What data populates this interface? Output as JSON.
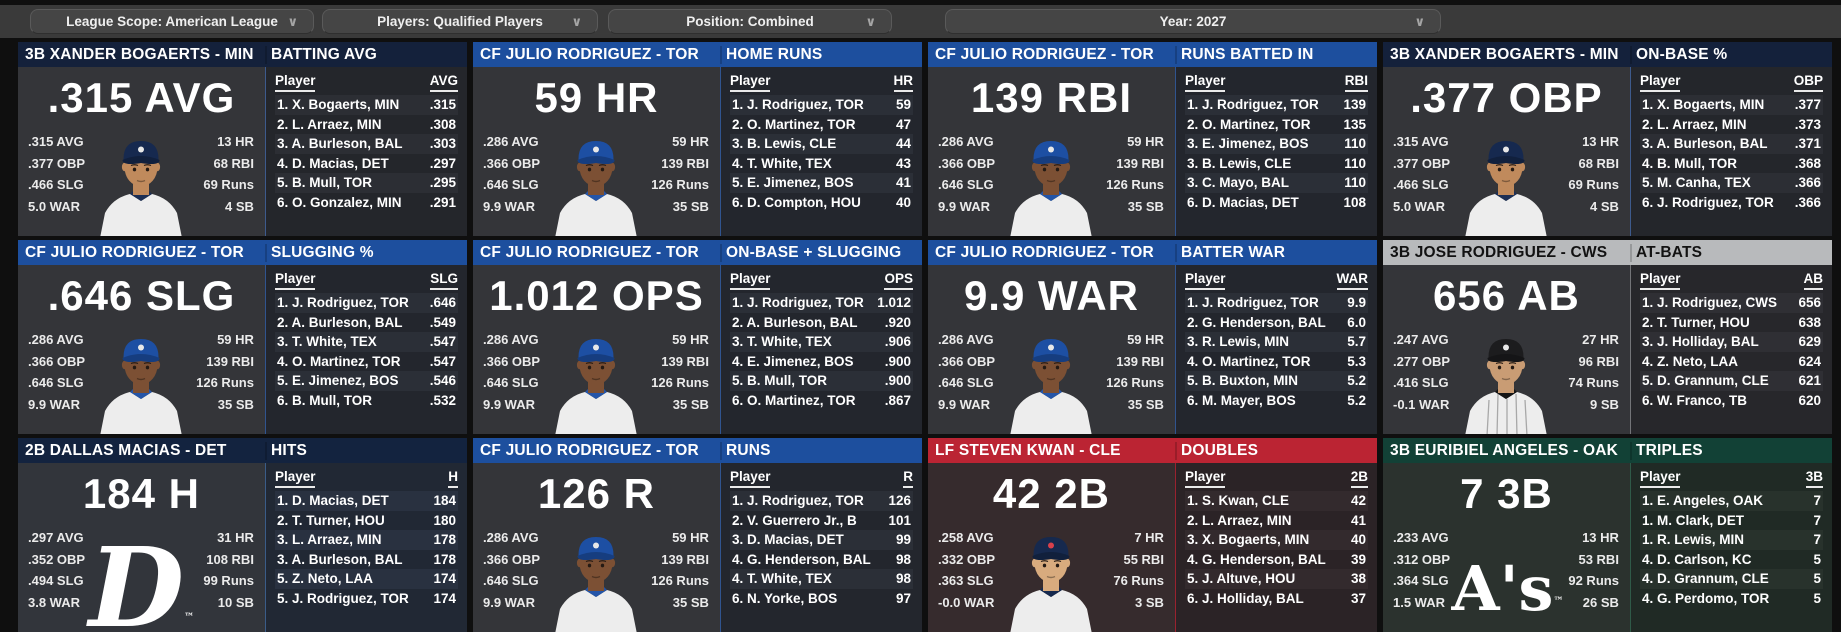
{
  "toolbar": {
    "chevron_icon": "∨",
    "dropdowns": [
      {
        "id": "league-scope",
        "label": "League Scope: American League"
      },
      {
        "id": "players",
        "label": "Players: Qualified Players"
      },
      {
        "id": "position",
        "label": "Position: Combined"
      },
      {
        "id": "year",
        "label": "Year: 2027"
      }
    ]
  },
  "panels": [
    {
      "player_header": "3B XANDER BOGAERTS - MIN",
      "stat_header": "BATTING AVG",
      "big_stat": ".315 AVG",
      "left_stats": [
        ".315 AVG",
        ".377 OBP",
        ".466 SLG",
        "5.0 WAR"
      ],
      "right_stats": [
        "13 HR",
        "68 RBI",
        "69 Runs",
        "4 SB"
      ],
      "table": {
        "player_col": "Player",
        "stat_col": "AVG",
        "rows": [
          {
            "player": "1. X. Bogaerts, MIN",
            "value": ".315"
          },
          {
            "player": "2. L. Arraez, MIN",
            "value": ".308"
          },
          {
            "player": "3. A. Burleson, BAL",
            "value": ".303"
          },
          {
            "player": "4. D. Macias, DET",
            "value": ".297"
          },
          {
            "player": "5. B. Mull, TOR",
            "value": ".295"
          },
          {
            "player": "6. O. Gonzalez, MIN",
            "value": ".291"
          }
        ]
      },
      "colors": {
        "header_bg": "#14213b",
        "header_fg": "#ffffff",
        "body_bg": "#343539",
        "list_bg": "#24262b",
        "row_alt": "#2c2e34",
        "divider": "#3d5a8c"
      },
      "avatar": {
        "kind": "player",
        "cap": "#16294f",
        "skin": "#c08a5c",
        "collar": "#1c2f55",
        "cap_logo": "#e8e8e8",
        "pinstripes": false
      }
    },
    {
      "player_header": "CF JULIO RODRIGUEZ - TOR",
      "stat_header": "HOME RUNS",
      "big_stat": "59 HR",
      "left_stats": [
        ".286 AVG",
        ".366 OBP",
        ".646 SLG",
        "9.9 WAR"
      ],
      "right_stats": [
        "59 HR",
        "139 RBI",
        "126 Runs",
        "35 SB"
      ],
      "table": {
        "player_col": "Player",
        "stat_col": "HR",
        "rows": [
          {
            "player": "1. J. Rodriguez, TOR",
            "value": "59"
          },
          {
            "player": "2. O. Martinez, TOR",
            "value": "47"
          },
          {
            "player": "3. B. Lewis, CLE",
            "value": "44"
          },
          {
            "player": "4. T. White, TEX",
            "value": "43"
          },
          {
            "player": "5. E. Jimenez, BOS",
            "value": "41"
          },
          {
            "player": "6. D. Compton, HOU",
            "value": "40"
          }
        ]
      },
      "colors": {
        "header_bg": "#1d4f9e",
        "header_fg": "#ffffff",
        "body_bg": "#343539",
        "list_bg": "#23262d",
        "row_alt": "#2b2f37",
        "divider": "#30548f"
      },
      "avatar": {
        "kind": "player",
        "cap": "#1d4fa3",
        "skin": "#7c5034",
        "collar": "#2455a8",
        "cap_logo": "#e8e8e8",
        "pinstripes": false
      }
    },
    {
      "player_header": "CF JULIO RODRIGUEZ - TOR",
      "stat_header": "RUNS BATTED IN",
      "big_stat": "139 RBI",
      "left_stats": [
        ".286 AVG",
        ".366 OBP",
        ".646 SLG",
        "9.9 WAR"
      ],
      "right_stats": [
        "59 HR",
        "139 RBI",
        "126 Runs",
        "35 SB"
      ],
      "table": {
        "player_col": "Player",
        "stat_col": "RBI",
        "rows": [
          {
            "player": "1. J. Rodriguez, TOR",
            "value": "139"
          },
          {
            "player": "2. O. Martinez, TOR",
            "value": "135"
          },
          {
            "player": "3. E. Jimenez, BOS",
            "value": "110"
          },
          {
            "player": "3. B. Lewis, CLE",
            "value": "110"
          },
          {
            "player": "3. C. Mayo, BAL",
            "value": "110"
          },
          {
            "player": "6. D. Macias, DET",
            "value": "108"
          }
        ]
      },
      "colors": {
        "header_bg": "#1d4f9e",
        "header_fg": "#ffffff",
        "body_bg": "#343539",
        "list_bg": "#23262d",
        "row_alt": "#2b2f37",
        "divider": "#30548f"
      },
      "avatar": {
        "kind": "player",
        "cap": "#1d4fa3",
        "skin": "#7c5034",
        "collar": "#2455a8",
        "cap_logo": "#e8e8e8",
        "pinstripes": false
      }
    },
    {
      "player_header": "3B XANDER BOGAERTS - MIN",
      "stat_header": "ON-BASE %",
      "big_stat": ".377 OBP",
      "left_stats": [
        ".315 AVG",
        ".377 OBP",
        ".466 SLG",
        "5.0 WAR"
      ],
      "right_stats": [
        "13 HR",
        "68 RBI",
        "69 Runs",
        "4 SB"
      ],
      "table": {
        "player_col": "Player",
        "stat_col": "OBP",
        "rows": [
          {
            "player": "1. X. Bogaerts, MIN",
            "value": ".377"
          },
          {
            "player": "2. L. Arraez, MIN",
            "value": ".373"
          },
          {
            "player": "3. A. Burleson, BAL",
            "value": ".371"
          },
          {
            "player": "4. B. Mull, TOR",
            "value": ".368"
          },
          {
            "player": "5. M. Canha, TEX",
            "value": ".366"
          },
          {
            "player": "6. J. Rodriguez, TOR",
            "value": ".366"
          }
        ]
      },
      "colors": {
        "header_bg": "#14213b",
        "header_fg": "#ffffff",
        "body_bg": "#343539",
        "list_bg": "#24262b",
        "row_alt": "#2c2e34",
        "divider": "#3d5a8c"
      },
      "avatar": {
        "kind": "player",
        "cap": "#16294f",
        "skin": "#c08a5c",
        "collar": "#1c2f55",
        "cap_logo": "#e8e8e8",
        "pinstripes": false
      }
    },
    {
      "player_header": "CF JULIO RODRIGUEZ - TOR",
      "stat_header": "SLUGGING %",
      "big_stat": ".646 SLG",
      "left_stats": [
        ".286 AVG",
        ".366 OBP",
        ".646 SLG",
        "9.9 WAR"
      ],
      "right_stats": [
        "59 HR",
        "139 RBI",
        "126 Runs",
        "35 SB"
      ],
      "table": {
        "player_col": "Player",
        "stat_col": "SLG",
        "rows": [
          {
            "player": "1. J. Rodriguez, TOR",
            "value": ".646"
          },
          {
            "player": "2. A. Burleson, BAL",
            "value": ".549"
          },
          {
            "player": "3. T. White, TEX",
            "value": ".547"
          },
          {
            "player": "4. O. Martinez, TOR",
            "value": ".547"
          },
          {
            "player": "5. E. Jimenez, BOS",
            "value": ".546"
          },
          {
            "player": "6. B. Mull, TOR",
            "value": ".532"
          }
        ]
      },
      "colors": {
        "header_bg": "#1d4f9e",
        "header_fg": "#ffffff",
        "body_bg": "#343539",
        "list_bg": "#23262d",
        "row_alt": "#2b2f37",
        "divider": "#30548f"
      },
      "avatar": {
        "kind": "player",
        "cap": "#1d4fa3",
        "skin": "#7c5034",
        "collar": "#2455a8",
        "cap_logo": "#e8e8e8",
        "pinstripes": false
      }
    },
    {
      "player_header": "CF JULIO RODRIGUEZ - TOR",
      "stat_header": "ON-BASE + SLUGGING",
      "big_stat": "1.012 OPS",
      "left_stats": [
        ".286 AVG",
        ".366 OBP",
        ".646 SLG",
        "9.9 WAR"
      ],
      "right_stats": [
        "59 HR",
        "139 RBI",
        "126 Runs",
        "35 SB"
      ],
      "table": {
        "player_col": "Player",
        "stat_col": "OPS",
        "rows": [
          {
            "player": "1. J. Rodriguez, TOR",
            "value": "1.012"
          },
          {
            "player": "2. A. Burleson, BAL",
            "value": ".920"
          },
          {
            "player": "3. T. White, TEX",
            "value": ".906"
          },
          {
            "player": "4. E. Jimenez, BOS",
            "value": ".900"
          },
          {
            "player": "5. B. Mull, TOR",
            "value": ".900"
          },
          {
            "player": "6. O. Martinez, TOR",
            "value": ".867"
          }
        ]
      },
      "colors": {
        "header_bg": "#1d4f9e",
        "header_fg": "#ffffff",
        "body_bg": "#343539",
        "list_bg": "#23262d",
        "row_alt": "#2b2f37",
        "divider": "#30548f"
      },
      "avatar": {
        "kind": "player",
        "cap": "#1d4fa3",
        "skin": "#7c5034",
        "collar": "#2455a8",
        "cap_logo": "#e8e8e8",
        "pinstripes": false
      }
    },
    {
      "player_header": "CF JULIO RODRIGUEZ - TOR",
      "stat_header": "BATTER WAR",
      "big_stat": "9.9 WAR",
      "left_stats": [
        ".286 AVG",
        ".366 OBP",
        ".646 SLG",
        "9.9 WAR"
      ],
      "right_stats": [
        "59 HR",
        "139 RBI",
        "126 Runs",
        "35 SB"
      ],
      "table": {
        "player_col": "Player",
        "stat_col": "WAR",
        "rows": [
          {
            "player": "1. J. Rodriguez, TOR",
            "value": "9.9"
          },
          {
            "player": "2. G. Henderson, BAL",
            "value": "6.0"
          },
          {
            "player": "3. R. Lewis, MIN",
            "value": "5.7"
          },
          {
            "player": "4. O. Martinez, TOR",
            "value": "5.3"
          },
          {
            "player": "5. B. Buxton, MIN",
            "value": "5.2"
          },
          {
            "player": "6. M. Mayer, BOS",
            "value": "5.2"
          }
        ]
      },
      "colors": {
        "header_bg": "#1d4f9e",
        "header_fg": "#ffffff",
        "body_bg": "#343539",
        "list_bg": "#23262d",
        "row_alt": "#2b2f37",
        "divider": "#30548f"
      },
      "avatar": {
        "kind": "player",
        "cap": "#1d4fa3",
        "skin": "#7c5034",
        "collar": "#2455a8",
        "cap_logo": "#e8e8e8",
        "pinstripes": false
      }
    },
    {
      "player_header": "3B JOSE RODRIGUEZ - CWS",
      "stat_header": "AT-BATS",
      "big_stat": "656 AB",
      "left_stats": [
        ".247 AVG",
        ".277 OBP",
        ".416 SLG",
        "-0.1 WAR"
      ],
      "right_stats": [
        "27 HR",
        "96 RBI",
        "74 Runs",
        "9 SB"
      ],
      "table": {
        "player_col": "Player",
        "stat_col": "AB",
        "rows": [
          {
            "player": "1. J. Rodriguez, CWS",
            "value": "656"
          },
          {
            "player": "2. T. Turner, HOU",
            "value": "638"
          },
          {
            "player": "3. J. Holliday, BAL",
            "value": "629"
          },
          {
            "player": "4. Z. Neto, LAA",
            "value": "624"
          },
          {
            "player": "5. D. Grannum, CLE",
            "value": "621"
          },
          {
            "player": "6. W. Franco, TB",
            "value": "620"
          }
        ]
      },
      "colors": {
        "header_bg": "#b8babc",
        "header_fg": "#121212",
        "body_bg": "#343539",
        "list_bg": "#27272b",
        "row_alt": "#2f2f34",
        "divider": "#737478"
      },
      "avatar": {
        "kind": "player",
        "cap": "#1c1c1e",
        "skin": "#c99c74",
        "collar": "#151515",
        "cap_logo": "#e8e8e8",
        "pinstripes": true
      }
    },
    {
      "player_header": "2B DALLAS MACIAS - DET",
      "stat_header": "HITS",
      "big_stat": "184 H",
      "left_stats": [
        ".297 AVG",
        ".352 OBP",
        ".494 SLG",
        "3.8 WAR"
      ],
      "right_stats": [
        "31 HR",
        "108 RBI",
        "99 Runs",
        "10 SB"
      ],
      "table": {
        "player_col": "Player",
        "stat_col": "H",
        "rows": [
          {
            "player": "1. D. Macias, DET",
            "value": "184"
          },
          {
            "player": "2. T. Turner, HOU",
            "value": "180"
          },
          {
            "player": "3. L. Arraez, MIN",
            "value": "178"
          },
          {
            "player": "3. A. Burleson, BAL",
            "value": "178"
          },
          {
            "player": "5. Z. Neto, LAA",
            "value": "174"
          },
          {
            "player": "5. J. Rodriguez, TOR",
            "value": "174"
          }
        ]
      },
      "colors": {
        "header_bg": "#13233f",
        "header_fg": "#ffffff",
        "body_bg": "#32353b",
        "list_bg": "#212834",
        "row_alt": "#293140",
        "divider": "#3a5c88"
      },
      "avatar": {
        "kind": "logo",
        "cls": "det",
        "text": "D",
        "tm": "™"
      }
    },
    {
      "player_header": "CF JULIO RODRIGUEZ - TOR",
      "stat_header": "RUNS",
      "big_stat": "126 R",
      "left_stats": [
        ".286 AVG",
        ".366 OBP",
        ".646 SLG",
        "9.9 WAR"
      ],
      "right_stats": [
        "59 HR",
        "139 RBI",
        "126 Runs",
        "35 SB"
      ],
      "table": {
        "player_col": "Player",
        "stat_col": "R",
        "rows": [
          {
            "player": "1. J. Rodriguez, TOR",
            "value": "126"
          },
          {
            "player": "2. V. Guerrero Jr., B",
            "value": "101"
          },
          {
            "player": "3. D. Macias, DET",
            "value": "99"
          },
          {
            "player": "4. G. Henderson, BAL",
            "value": "98"
          },
          {
            "player": "4. T. White, TEX",
            "value": "98"
          },
          {
            "player": "6. N. Yorke, BOS",
            "value": "97"
          }
        ]
      },
      "colors": {
        "header_bg": "#1d4f9e",
        "header_fg": "#ffffff",
        "body_bg": "#343539",
        "list_bg": "#23262d",
        "row_alt": "#2b2f37",
        "divider": "#30548f"
      },
      "avatar": {
        "kind": "player",
        "cap": "#1d4fa3",
        "skin": "#7c5034",
        "collar": "#2455a8",
        "cap_logo": "#e8e8e8",
        "pinstripes": false
      }
    },
    {
      "player_header": "LF STEVEN KWAN - CLE",
      "stat_header": "DOUBLES",
      "big_stat": "42 2B",
      "left_stats": [
        ".258 AVG",
        ".332 OBP",
        ".363 SLG",
        "-0.0 WAR"
      ],
      "right_stats": [
        "7 HR",
        "55 RBI",
        "76 Runs",
        "3 SB"
      ],
      "table": {
        "player_col": "Player",
        "stat_col": "2B",
        "rows": [
          {
            "player": "1. S. Kwan, CLE",
            "value": "42"
          },
          {
            "player": "2. L. Arraez, MIN",
            "value": "41"
          },
          {
            "player": "3. X. Bogaerts, MIN",
            "value": "40"
          },
          {
            "player": "4. G. Henderson, BAL",
            "value": "39"
          },
          {
            "player": "5. J. Altuve, HOU",
            "value": "38"
          },
          {
            "player": "6. J. Holliday, BAL",
            "value": "37"
          }
        ]
      },
      "colors": {
        "header_bg": "#bb2433",
        "header_fg": "#ffffff",
        "body_bg": "#362b2d",
        "list_bg": "#2b2326",
        "row_alt": "#332a2d",
        "divider": "#99222f"
      },
      "avatar": {
        "kind": "player",
        "cap": "#16294e",
        "skin": "#d8ab7e",
        "collar": "#16294e",
        "cap_logo": "#d8404b",
        "pinstripes": false
      }
    },
    {
      "player_header": "3B EURIBIEL ANGELES - OAK",
      "stat_header": "TRIPLES",
      "big_stat": "7 3B",
      "left_stats": [
        ".233 AVG",
        ".312 OBP",
        ".364 SLG",
        "1.5 WAR"
      ],
      "right_stats": [
        "13 HR",
        "53 RBI",
        "92 Runs",
        "26 SB"
      ],
      "table": {
        "player_col": "Player",
        "stat_col": "3B",
        "rows": [
          {
            "player": "1. E. Angeles, OAK",
            "value": "7"
          },
          {
            "player": "1. M. Clark, DET",
            "value": "7"
          },
          {
            "player": "1. R. Lewis, MIN",
            "value": "7"
          },
          {
            "player": "4. D. Carlson, KC",
            "value": "5"
          },
          {
            "player": "4. D. Grannum, CLE",
            "value": "5"
          },
          {
            "player": "4. G. Perdomo, TOR",
            "value": "5"
          }
        ]
      },
      "colors": {
        "header_bg": "#124136",
        "header_fg": "#ffffff",
        "body_bg": "#2b322e",
        "list_bg": "#202a25",
        "row_alt": "#28322c",
        "divider": "#2f5a48"
      },
      "avatar": {
        "kind": "logo",
        "cls": "oak",
        "text": "A's",
        "tm": "™"
      }
    }
  ]
}
